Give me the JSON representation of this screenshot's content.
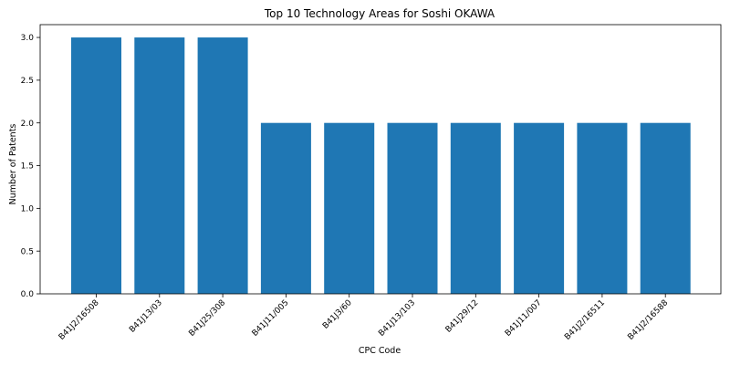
{
  "chart_data": {
    "type": "bar",
    "title": "Top 10 Technology Areas for Soshi OKAWA",
    "xlabel": "CPC Code",
    "ylabel": "Number of Patents",
    "categories": [
      "B41J2/16508",
      "B41J13/03",
      "B41J25/308",
      "B41J11/005",
      "B41J3/60",
      "B41J13/103",
      "B41J29/12",
      "B41J11/007",
      "B41J2/16511",
      "B41J2/16588"
    ],
    "values": [
      3,
      3,
      3,
      2,
      2,
      2,
      2,
      2,
      2,
      2
    ],
    "ylim": [
      0,
      3.15
    ],
    "yticks": [
      "0.0",
      "0.5",
      "1.0",
      "1.5",
      "2.0",
      "2.5",
      "3.0"
    ],
    "grid": false,
    "bar_color": "#1f77b4"
  }
}
